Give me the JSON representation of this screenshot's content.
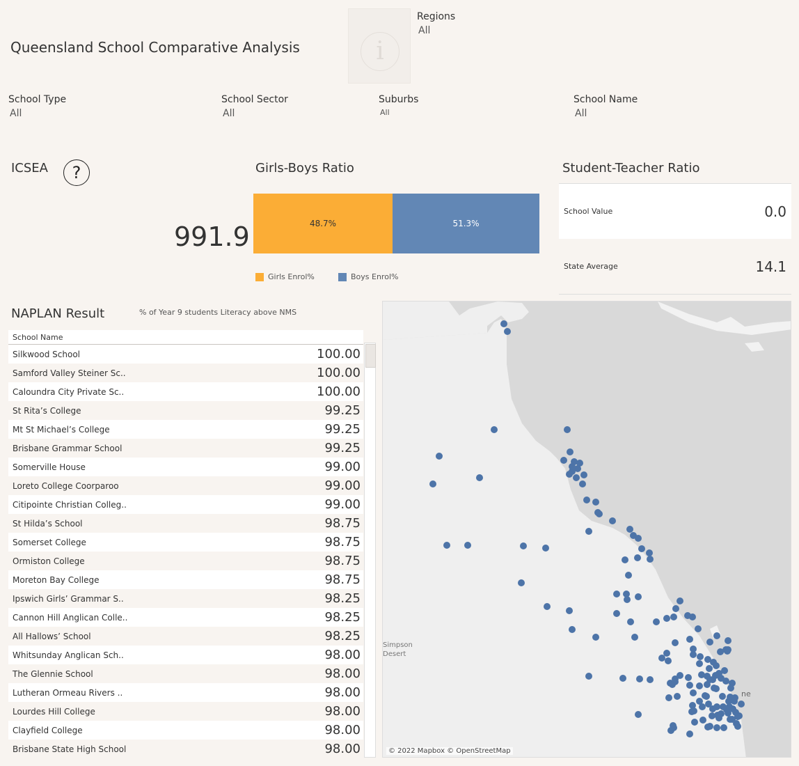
{
  "header": {
    "title": "Queensland School Comparative Analysis"
  },
  "filters": {
    "regions": {
      "label": "Regions",
      "value": "All"
    },
    "school_type": {
      "label": "School Type",
      "value": "All"
    },
    "school_sector": {
      "label": "School Sector",
      "value": "All"
    },
    "suburbs": {
      "label": "Suburbs",
      "value": "All"
    },
    "school_name": {
      "label": "School Name",
      "value": "All"
    }
  },
  "icsea": {
    "title": "ICSEA",
    "value": "991.9"
  },
  "girls_boys": {
    "title": "Girls-Boys Ratio",
    "girls_label": "48.7%",
    "boys_label": "51.3%",
    "legend_girls": "Girls Enrol%",
    "legend_boys": "Boys Enrol%",
    "girls_pct": 48.7,
    "boys_pct": 51.3,
    "colors": {
      "girls": "#fbad36",
      "boys": "#6287b5"
    }
  },
  "student_teacher": {
    "title": "Student-Teacher Ratio",
    "rows": [
      {
        "label": "School Value",
        "value": "0.0"
      },
      {
        "label": "State Average",
        "value": "14.1"
      }
    ]
  },
  "naplan": {
    "title": "NAPLAN Result",
    "subtitle": "% of Year 9 students Literacy above NMS",
    "column": "School Name",
    "rows": [
      {
        "name": "Silkwood School",
        "score": "100.00"
      },
      {
        "name": "Samford Valley Steiner Sc..",
        "score": "100.00"
      },
      {
        "name": "Caloundra City Private Sc..",
        "score": "100.00"
      },
      {
        "name": "St Rita’s College",
        "score": "99.25"
      },
      {
        "name": "Mt St Michael’s College",
        "score": "99.25"
      },
      {
        "name": "Brisbane Grammar School",
        "score": "99.25"
      },
      {
        "name": "Somerville House",
        "score": "99.00"
      },
      {
        "name": "Loreto College Coorparoo",
        "score": "99.00"
      },
      {
        "name": "Citipointe Christian Colleg..",
        "score": "99.00"
      },
      {
        "name": "St Hilda’s School",
        "score": "98.75"
      },
      {
        "name": "Somerset College",
        "score": "98.75"
      },
      {
        "name": "Ormiston College",
        "score": "98.75"
      },
      {
        "name": "Moreton Bay College",
        "score": "98.75"
      },
      {
        "name": "Ipswich Girls’ Grammar S..",
        "score": "98.25"
      },
      {
        "name": "Cannon Hill Anglican Colle..",
        "score": "98.25"
      },
      {
        "name": "All Hallows’ School",
        "score": "98.25"
      },
      {
        "name": "Whitsunday Anglican Sch..",
        "score": "98.00"
      },
      {
        "name": "The Glennie School",
        "score": "98.00"
      },
      {
        "name": "Lutheran Ormeau Rivers ..",
        "score": "98.00"
      },
      {
        "name": "Lourdes Hill College",
        "score": "98.00"
      },
      {
        "name": "Clayfield College",
        "score": "98.00"
      },
      {
        "name": "Brisbane State High School",
        "score": "98.00"
      }
    ]
  },
  "map": {
    "attribution": "© 2022 Mapbox © OpenStreetMap",
    "label_desert": "Simpson Desert",
    "label_city": "ne",
    "colors": {
      "sea": "#d9d9d9",
      "land": "#efefef",
      "dot": "#4d74a8"
    }
  }
}
